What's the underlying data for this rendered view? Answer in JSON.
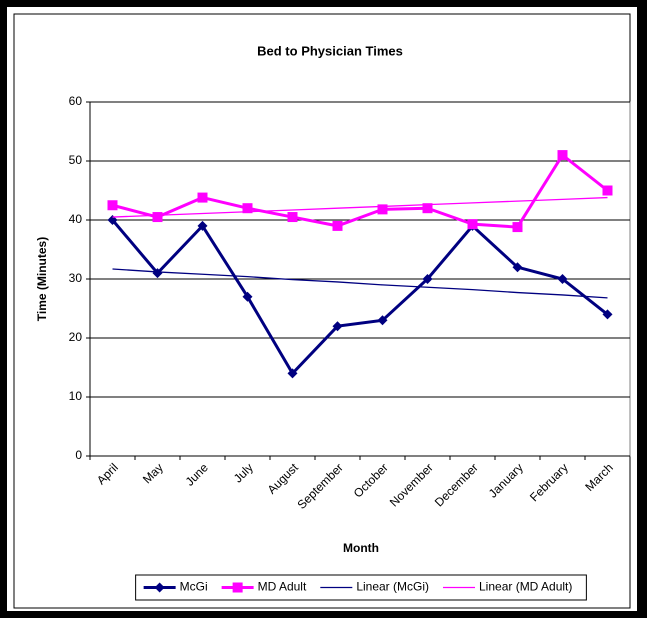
{
  "chart_data": {
    "type": "line",
    "title": "Bed to Physician Times",
    "x_label": "Month",
    "y_label": "Time (Minutes)",
    "categories": [
      "April",
      "May",
      "June",
      "July",
      "August",
      "September",
      "October",
      "November",
      "December",
      "January",
      "February",
      "March"
    ],
    "series": [
      {
        "name": "McGi",
        "color": "#000080",
        "marker": "diamond",
        "values": [
          40,
          31,
          39,
          27,
          14,
          22,
          23,
          30,
          39,
          32,
          30,
          24
        ]
      },
      {
        "name": "MD Adult",
        "color": "#ff00ff",
        "marker": "square",
        "values": [
          42.5,
          40.5,
          43.8,
          42,
          40.5,
          39,
          41.8,
          42,
          39.3,
          38.8,
          51,
          45
        ]
      },
      {
        "name": "Linear (McGi)",
        "color": "#000080",
        "values": [
          31.7,
          31.2,
          30.8,
          30.4,
          29.9,
          29.5,
          29.0,
          28.6,
          28.2,
          27.7,
          27.3,
          26.8
        ]
      },
      {
        "name": "Linear (MD Adult)",
        "color": "#ff00ff",
        "values": [
          40.5,
          40.8,
          41.1,
          41.4,
          41.7,
          42.0,
          42.3,
          42.6,
          42.9,
          43.2,
          43.5,
          43.8
        ]
      }
    ],
    "ylim": [
      0,
      60
    ],
    "yticks": [
      0,
      10,
      20,
      30,
      40,
      50,
      60
    ],
    "grid": true,
    "legend": "bottom"
  }
}
